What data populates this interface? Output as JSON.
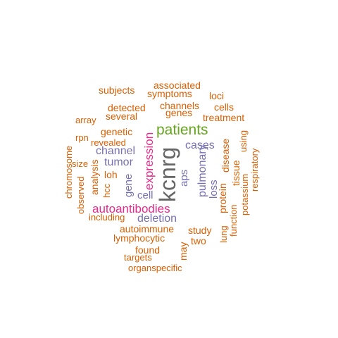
{
  "colors": {
    "gray": "#666666",
    "green": "#66a61e",
    "magenta": "#e7298a",
    "purple": "#7570b3",
    "orange": "#d95f02"
  },
  "words": [
    {
      "text": "kcnrg",
      "color": "gray",
      "rotated": true
    },
    {
      "text": "patients",
      "color": "green",
      "rotated": false
    },
    {
      "text": "autoantibodies",
      "color": "magenta",
      "rotated": false
    },
    {
      "text": "expression",
      "color": "magenta",
      "rotated": true
    },
    {
      "text": "cases",
      "color": "purple",
      "rotated": false
    },
    {
      "text": "channel",
      "color": "purple",
      "rotated": false
    },
    {
      "text": "tumor",
      "color": "purple",
      "rotated": false
    },
    {
      "text": "deletion",
      "color": "purple",
      "rotated": false
    },
    {
      "text": "cell",
      "color": "purple",
      "rotated": false
    },
    {
      "text": "aps",
      "color": "purple",
      "rotated": true
    },
    {
      "text": "pulmonary",
      "color": "purple",
      "rotated": true
    },
    {
      "text": "gene",
      "color": "purple",
      "rotated": true
    },
    {
      "text": "loss",
      "color": "purple",
      "rotated": true
    },
    {
      "text": "associated",
      "color": "orange",
      "rotated": false
    },
    {
      "text": "subjects",
      "color": "orange",
      "rotated": false
    },
    {
      "text": "symptoms",
      "color": "orange",
      "rotated": false
    },
    {
      "text": "loci",
      "color": "orange",
      "rotated": false
    },
    {
      "text": "channels",
      "color": "orange",
      "rotated": false
    },
    {
      "text": "detected",
      "color": "orange",
      "rotated": false
    },
    {
      "text": "cells",
      "color": "orange",
      "rotated": false
    },
    {
      "text": "genes",
      "color": "orange",
      "rotated": false
    },
    {
      "text": "several",
      "color": "orange",
      "rotated": false
    },
    {
      "text": "treatment",
      "color": "orange",
      "rotated": false
    },
    {
      "text": "array",
      "color": "orange",
      "rotated": false
    },
    {
      "text": "genetic",
      "color": "orange",
      "rotated": false
    },
    {
      "text": "rpn",
      "color": "orange",
      "rotated": false
    },
    {
      "text": "revealed",
      "color": "orange",
      "rotated": false
    },
    {
      "text": "size",
      "color": "orange",
      "rotated": false
    },
    {
      "text": "loh",
      "color": "orange",
      "rotated": false
    },
    {
      "text": "including",
      "color": "orange",
      "rotated": false
    },
    {
      "text": "autoimmune",
      "color": "orange",
      "rotated": false
    },
    {
      "text": "study",
      "color": "orange",
      "rotated": false
    },
    {
      "text": "lymphocytic",
      "color": "orange",
      "rotated": false
    },
    {
      "text": "two",
      "color": "orange",
      "rotated": false
    },
    {
      "text": "found",
      "color": "orange",
      "rotated": false
    },
    {
      "text": "targets",
      "color": "orange",
      "rotated": false
    },
    {
      "text": "organspecific",
      "color": "orange",
      "rotated": false
    },
    {
      "text": "chromosome",
      "color": "orange",
      "rotated": true
    },
    {
      "text": "observed",
      "color": "orange",
      "rotated": true
    },
    {
      "text": "analysis",
      "color": "orange",
      "rotated": true
    },
    {
      "text": "hcc",
      "color": "orange",
      "rotated": true
    },
    {
      "text": "may",
      "color": "orange",
      "rotated": true
    },
    {
      "text": "protein",
      "color": "orange",
      "rotated": true
    },
    {
      "text": "disease",
      "color": "orange",
      "rotated": true
    },
    {
      "text": "lung",
      "color": "orange",
      "rotated": true
    },
    {
      "text": "function",
      "color": "orange",
      "rotated": true
    },
    {
      "text": "tissue",
      "color": "orange",
      "rotated": true
    },
    {
      "text": "potassium",
      "color": "orange",
      "rotated": true
    },
    {
      "text": "using",
      "color": "orange",
      "rotated": true
    },
    {
      "text": "respiratory",
      "color": "orange",
      "rotated": true
    }
  ]
}
